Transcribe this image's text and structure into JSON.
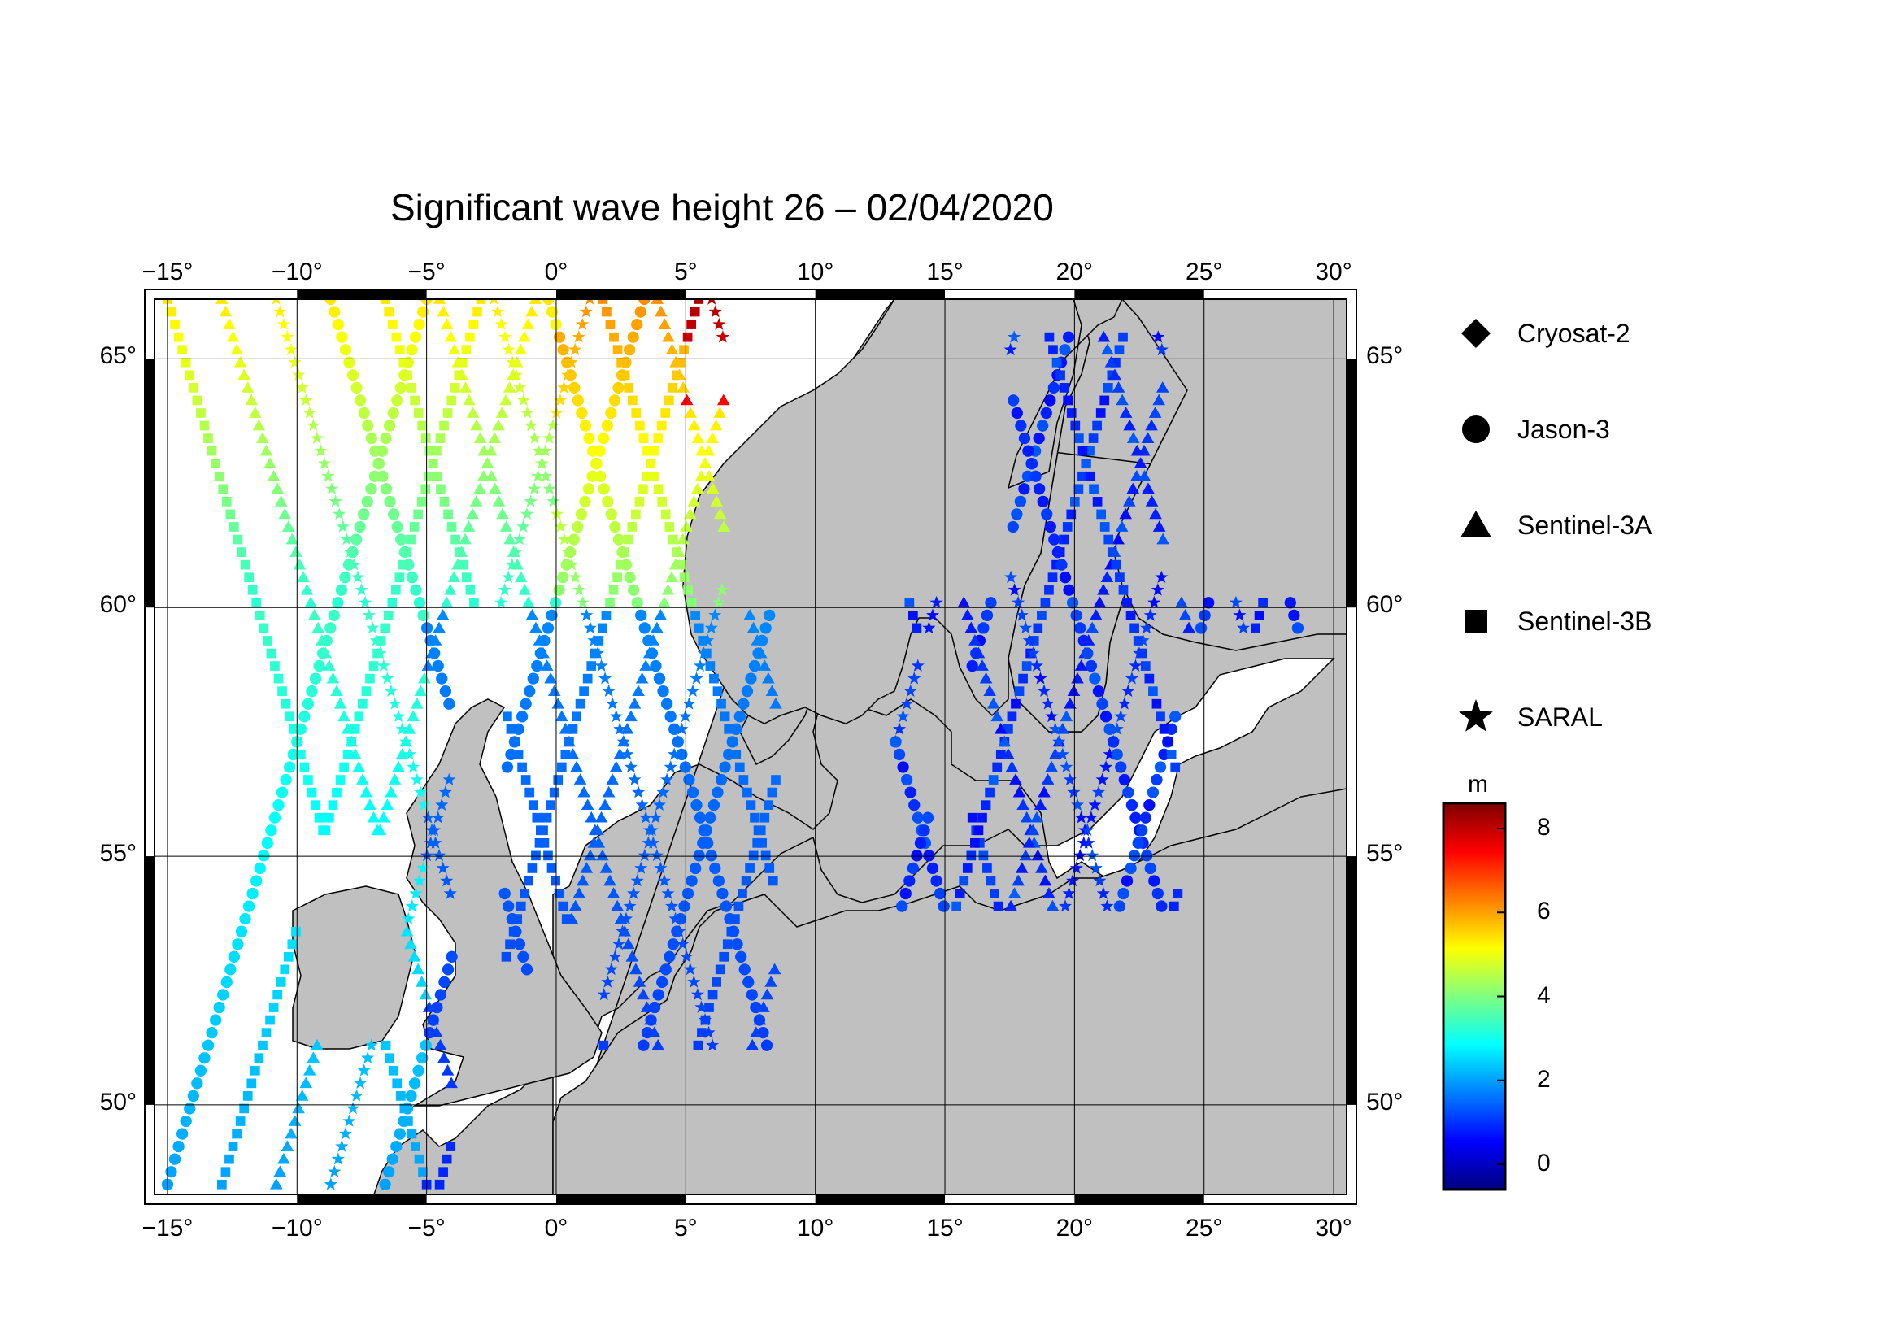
{
  "title": "Significant wave height 26 – 02/04/2020",
  "lon_ticks": [
    "−15°",
    "−10°",
    "−5°",
    "0°",
    "5°",
    "10°",
    "15°",
    "20°",
    "25°",
    "30°"
  ],
  "lat_ticks": [
    "50°",
    "55°",
    "60°",
    "65°"
  ],
  "legend": [
    {
      "label": "Cryosat-2",
      "symbol": "diamond"
    },
    {
      "label": "Jason-3",
      "symbol": "circle"
    },
    {
      "label": "Sentinel-3A",
      "symbol": "triangle"
    },
    {
      "label": "Sentinel-3B",
      "symbol": "square"
    },
    {
      "label": "SARAL",
      "symbol": "star"
    }
  ],
  "colorbar": {
    "unit": "m",
    "ticks": [
      "8",
      "6",
      "4",
      "2",
      "0"
    ],
    "range": [
      -0.6,
      8.6
    ],
    "colormap": [
      "#00007f",
      "#0000ff",
      "#007fff",
      "#00ffff",
      "#7fff7f",
      "#ffff00",
      "#ff7f00",
      "#ff0000",
      "#7f0000"
    ]
  },
  "colors": {
    "land": "#c0c0c0",
    "sea": "#ffffff",
    "frame": "#000000"
  },
  "map_extent": {
    "lon": [
      -15.5,
      30.5
    ],
    "lat": [
      48.2,
      66.2
    ]
  }
}
